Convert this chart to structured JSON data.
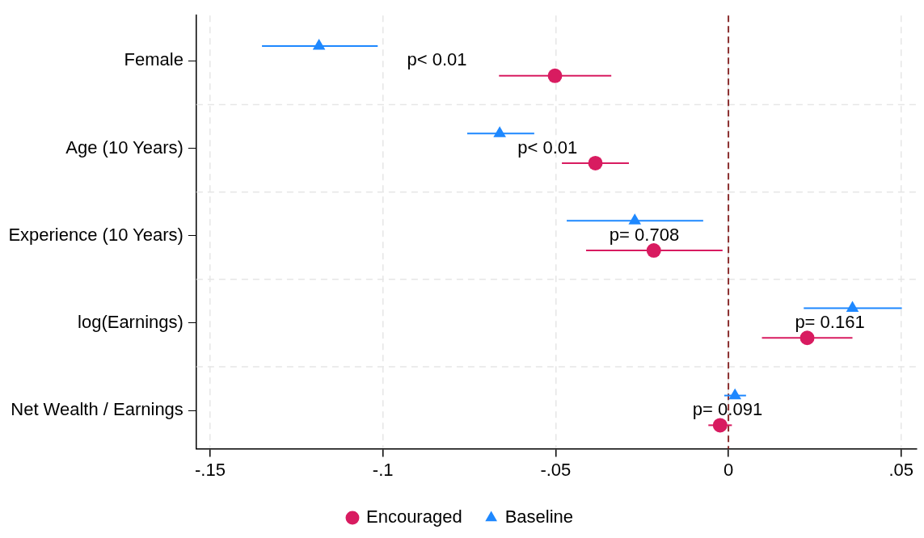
{
  "chart_data": {
    "type": "scatter",
    "orientation": "horizontal",
    "categories": [
      "Female",
      "Age (10 Years)",
      "Experience (10 Years)",
      "log(Earnings)",
      "Net Wealth / Earnings"
    ],
    "series": [
      {
        "name": "Encouraged",
        "color": "#d81b60",
        "marker": "circle",
        "values": [
          -0.0502,
          -0.0385,
          -0.0216,
          0.0228,
          -0.0024
        ],
        "errors": [
          [
            -0.0664,
            -0.0339
          ],
          [
            -0.0482,
            -0.0288
          ],
          [
            -0.0412,
            -0.0017
          ],
          [
            0.0097,
            0.0359
          ],
          [
            -0.0058,
            0.001
          ]
        ]
      },
      {
        "name": "Baseline",
        "color": "#1e88ff",
        "marker": "triangle",
        "values": [
          -0.1185,
          -0.0662,
          -0.0271,
          0.0359,
          0.0019
        ],
        "errors": [
          [
            -0.135,
            -0.1015
          ],
          [
            -0.0756,
            -0.0562
          ],
          [
            -0.0468,
            -0.0073
          ],
          [
            0.0218,
            0.0502
          ],
          [
            -0.0012,
            0.0051
          ]
        ]
      }
    ],
    "xlim": [
      -0.154,
      0.0545
    ],
    "xticks": [
      {
        "value": -0.15,
        "label": "-.15"
      },
      {
        "value": -0.1,
        "label": "-.1"
      },
      {
        "value": -0.05,
        "label": "-.05"
      },
      0,
      {
        "value": 0.05,
        "label": ".05"
      }
    ],
    "ref_lines": [
      {
        "axis": "x",
        "value": 0,
        "color": "#8b2e2e",
        "line_style": "dashed"
      }
    ],
    "annotations": [
      "p< 0.01",
      "p< 0.01",
      "p= 0.708",
      "p= 0.161",
      "p= 0.091"
    ],
    "grid": true,
    "legend": "bottom"
  }
}
